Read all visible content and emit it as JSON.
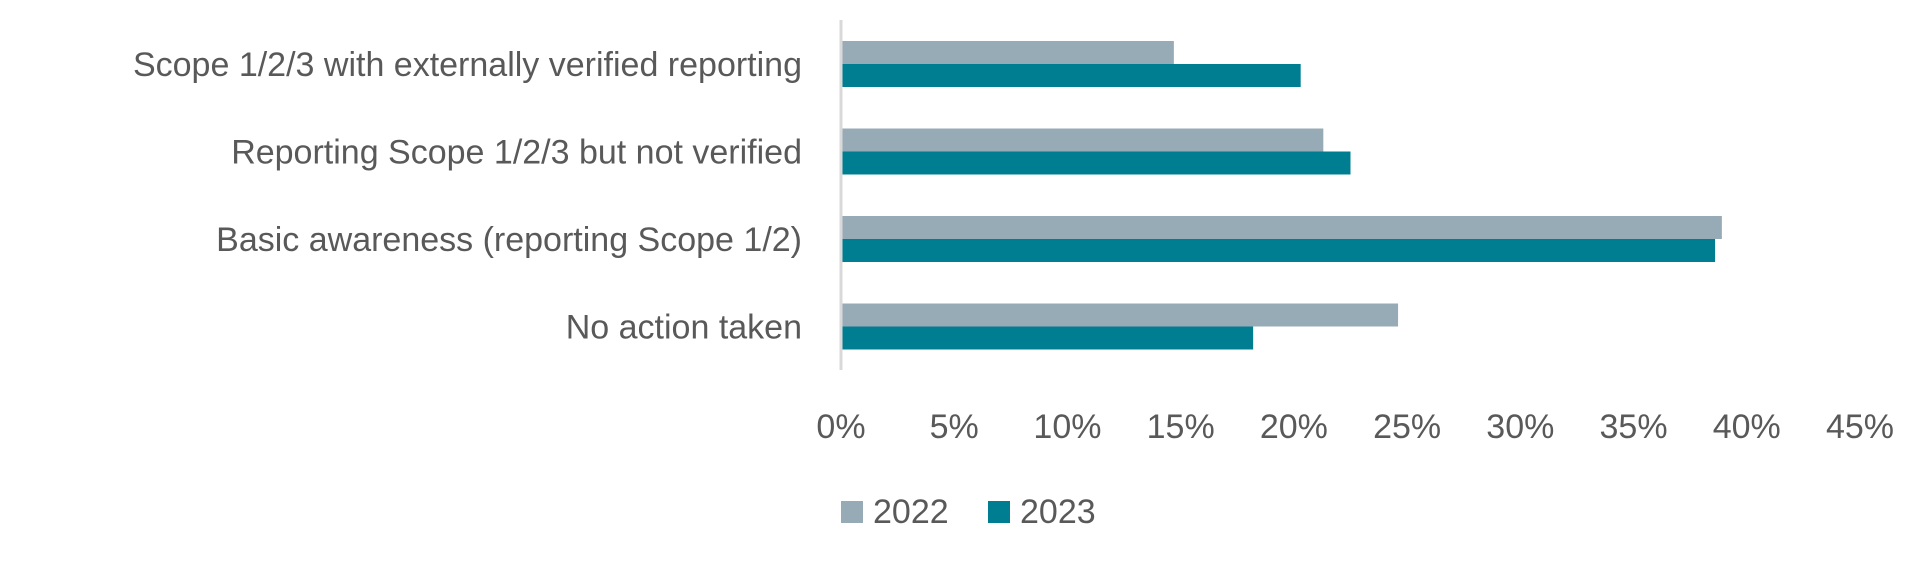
{
  "chart_data": {
    "type": "bar",
    "orientation": "horizontal",
    "categories": [
      "Scope 1/2/3 with externally verified reporting",
      "Reporting Scope 1/2/3 but not verified",
      "Basic awareness (reporting Scope 1/2)",
      "No action taken"
    ],
    "series": [
      {
        "name": "2022",
        "color": "#97abb6",
        "values": [
          14.7,
          21.3,
          38.9,
          24.6
        ]
      },
      {
        "name": "2023",
        "color": "#007e91",
        "values": [
          20.3,
          22.5,
          38.6,
          18.2
        ]
      }
    ],
    "xlim": [
      0,
      45
    ],
    "xticks": [
      "0%",
      "5%",
      "10%",
      "15%",
      "20%",
      "25%",
      "30%",
      "35%",
      "40%",
      "45%"
    ],
    "grid": false,
    "legend": "bottom"
  }
}
